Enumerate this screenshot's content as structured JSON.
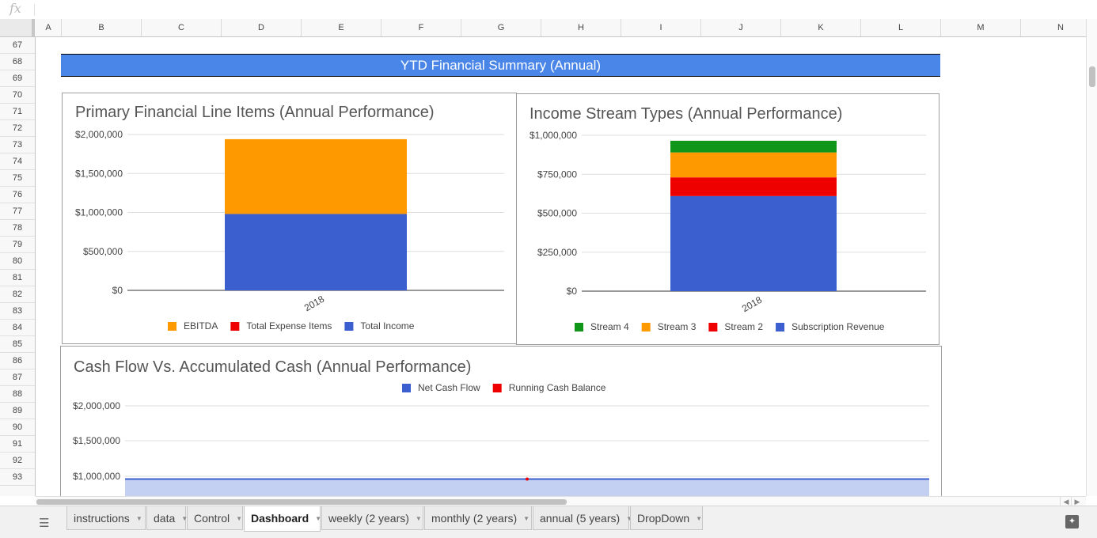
{
  "formula_bar": {
    "fx_label": "fx",
    "value": ""
  },
  "columns": [
    "A",
    "B",
    "C",
    "D",
    "E",
    "F",
    "G",
    "H",
    "I",
    "J",
    "K",
    "L",
    "M",
    "N"
  ],
  "rows": [
    "67",
    "68",
    "69",
    "70",
    "71",
    "72",
    "73",
    "74",
    "75",
    "76",
    "77",
    "78",
    "79",
    "80",
    "81",
    "82",
    "83",
    "84",
    "85",
    "86",
    "87",
    "88",
    "89",
    "90",
    "91",
    "92",
    "93"
  ],
  "banner": {
    "title": "YTD Financial Summary (Annual)"
  },
  "chart_data": [
    {
      "type": "bar",
      "stacked": true,
      "title": "Primary Financial Line Items (Annual Performance)",
      "categories": [
        "2018"
      ],
      "tick_labels": [
        "2018"
      ],
      "ylim": [
        0,
        2000000
      ],
      "yticks": [
        "$0",
        "$500,000",
        "$1,000,000",
        "$1,500,000",
        "$2,000,000"
      ],
      "series": [
        {
          "name": "Total Income",
          "values": [
            980000
          ],
          "color": "#3c5fcf"
        },
        {
          "name": "Total Expense Items",
          "values": [
            0
          ],
          "color": "#ee0000"
        },
        {
          "name": "EBITDA",
          "values": [
            960000
          ],
          "color": "#ff9900"
        }
      ],
      "legend_order": [
        "EBITDA",
        "Total Expense Items",
        "Total Income"
      ],
      "legend_position": "bottom"
    },
    {
      "type": "bar",
      "stacked": true,
      "title": "Income Stream Types (Annual Performance)",
      "categories": [
        "2018"
      ],
      "tick_labels": [
        "2018"
      ],
      "ylim": [
        0,
        1000000
      ],
      "yticks": [
        "$0",
        "$250,000",
        "$500,000",
        "$750,000",
        "$1,000,000"
      ],
      "series": [
        {
          "name": "Subscription Revenue",
          "values": [
            610000
          ],
          "color": "#3c5fcf"
        },
        {
          "name": "Stream 2",
          "values": [
            120000
          ],
          "color": "#ee0000"
        },
        {
          "name": "Stream 3",
          "values": [
            160000
          ],
          "color": "#ff9900"
        },
        {
          "name": "Stream 4",
          "values": [
            75000
          ],
          "color": "#109618"
        }
      ],
      "legend_order": [
        "Stream 4",
        "Stream 3",
        "Stream 2",
        "Subscription Revenue"
      ],
      "legend_position": "bottom"
    },
    {
      "type": "area",
      "title": "Cash Flow Vs. Accumulated Cash (Annual Performance)",
      "ylim": [
        0,
        2000000
      ],
      "yticks": [
        "$1,000,000",
        "$1,500,000",
        "$2,000,000"
      ],
      "series": [
        {
          "name": "Net Cash Flow",
          "values": [
            960000
          ],
          "color": "#3c5fcf"
        },
        {
          "name": "Running Cash Balance",
          "values": [
            960000
          ],
          "color": "#ee0000"
        }
      ],
      "legend_position": "top",
      "grid": true
    }
  ],
  "tabs": [
    {
      "label": "instructions"
    },
    {
      "label": "data"
    },
    {
      "label": "Control"
    },
    {
      "label": "Dashboard",
      "active": true
    },
    {
      "label": "weekly (2 years)"
    },
    {
      "label": "monthly (2 years)"
    },
    {
      "label": "annual (5 years)"
    },
    {
      "label": "DropDown"
    }
  ],
  "icons": {
    "sheets_menu": "hamburger-icon",
    "explore": "explore-icon",
    "tab_dropdown": "caret-down-icon"
  }
}
